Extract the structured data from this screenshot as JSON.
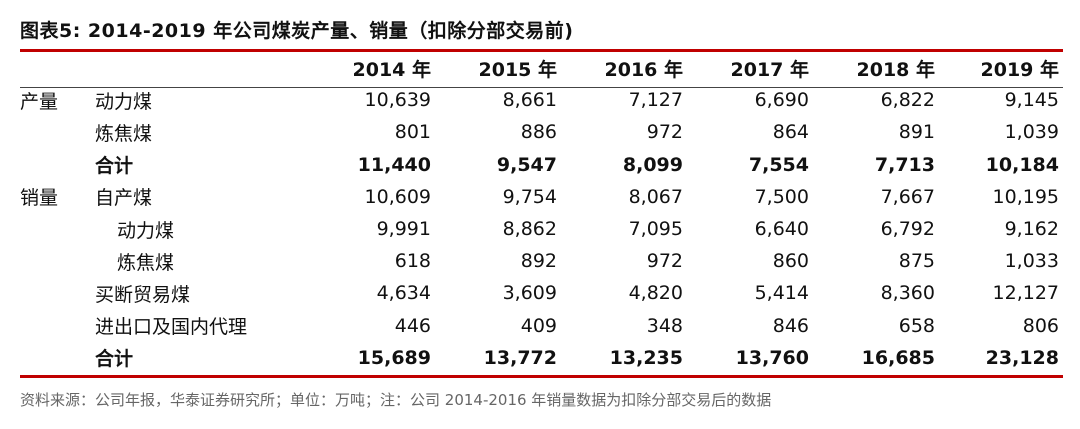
{
  "title": "图表5:  2014-2019 年公司煤炭产量、销量（扣除分部交易前)",
  "columns": [
    "2014 年",
    "2015 年",
    "2016 年",
    "2017 年",
    "2018 年",
    "2019 年"
  ],
  "rows": [
    {
      "group": "产量",
      "label": "动力煤",
      "indent": 1,
      "bold": false,
      "values": [
        "10,639",
        "8,661",
        "7,127",
        "6,690",
        "6,822",
        "9,145"
      ]
    },
    {
      "group": "",
      "label": "炼焦煤",
      "indent": 1,
      "bold": false,
      "values": [
        "801",
        "886",
        "972",
        "864",
        "891",
        "1,039"
      ]
    },
    {
      "group": "",
      "label": "合计",
      "indent": 1,
      "bold": true,
      "values": [
        "11,440",
        "9,547",
        "8,099",
        "7,554",
        "7,713",
        "10,184"
      ]
    },
    {
      "group": "销量",
      "label": "自产煤",
      "indent": 1,
      "bold": false,
      "values": [
        "10,609",
        "9,754",
        "8,067",
        "7,500",
        "7,667",
        "10,195"
      ]
    },
    {
      "group": "",
      "label": "动力煤",
      "indent": 2,
      "bold": false,
      "values": [
        "9,991",
        "8,862",
        "7,095",
        "6,640",
        "6,792",
        "9,162"
      ]
    },
    {
      "group": "",
      "label": "炼焦煤",
      "indent": 2,
      "bold": false,
      "values": [
        "618",
        "892",
        "972",
        "860",
        "875",
        "1,033"
      ]
    },
    {
      "group": "",
      "label": "买断贸易煤",
      "indent": 1,
      "bold": false,
      "values": [
        "4,634",
        "3,609",
        "4,820",
        "5,414",
        "8,360",
        "12,127"
      ]
    },
    {
      "group": "",
      "label": "进出口及国内代理",
      "indent": 1,
      "bold": false,
      "values": [
        "446",
        "409",
        "348",
        "846",
        "658",
        "806"
      ]
    },
    {
      "group": "",
      "label": "合计",
      "indent": 1,
      "bold": true,
      "values": [
        "15,689",
        "13,772",
        "13,235",
        "13,760",
        "16,685",
        "23,128"
      ]
    }
  ],
  "source": "资料来源：公司年报，华泰证券研究所；单位：万吨；注：公司 2014-2016 年销量数据为扣除分部交易后的数据",
  "colors": {
    "accent": "#c00000",
    "text": "#111111",
    "source_text": "#666666"
  }
}
